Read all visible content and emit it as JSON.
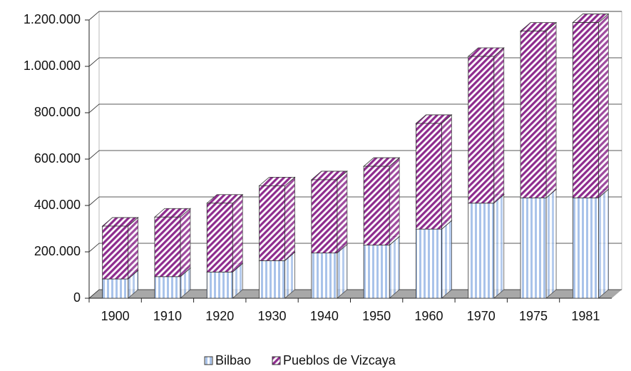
{
  "chart_data": {
    "type": "stacked_bar_3d",
    "categories": [
      "1900",
      "1910",
      "1920",
      "1930",
      "1940",
      "1950",
      "1960",
      "1970",
      "1975",
      "1981"
    ],
    "series": [
      {
        "name": "Bilbao",
        "color": "#a9c3ea",
        "values": [
          83000,
          93000,
          113000,
          162000,
          195000,
          229000,
          298000,
          410000,
          433000,
          433000
        ]
      },
      {
        "name": "Pueblos de Vizcaya",
        "color": "#8e2c8e",
        "values": [
          228000,
          257000,
          297000,
          323000,
          316000,
          340000,
          456000,
          633000,
          719000,
          756000
        ]
      }
    ],
    "ylim": [
      0,
      1200000
    ],
    "yticks": [
      0,
      {
        "value": 200000,
        "label": "200.000"
      },
      {
        "value": 400000,
        "label": "400.000"
      },
      {
        "value": 600000,
        "label": "600.000"
      },
      {
        "value": 800000,
        "label": "800.000"
      },
      {
        "value": 1000000,
        "label": "1.000.000"
      },
      {
        "value": 1200000,
        "label": "1.200.000"
      }
    ],
    "grid": true,
    "legend": "bottom"
  }
}
